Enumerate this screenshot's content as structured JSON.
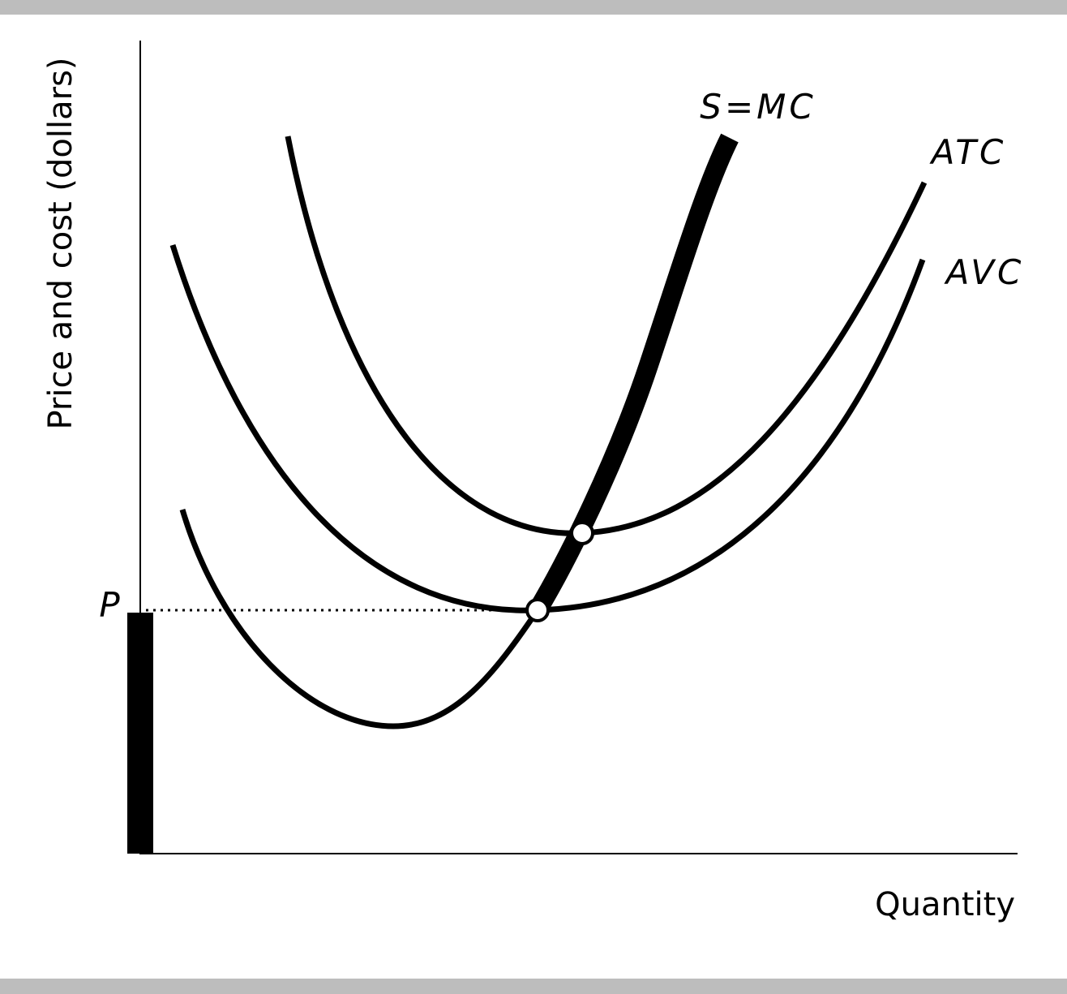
{
  "axes": {
    "y_label": "Price and cost (dollars)",
    "x_label": "Quantity"
  },
  "curves": {
    "supply": "S=MC",
    "atc": "ATC",
    "avc": "AVC"
  },
  "price_label": "P"
}
